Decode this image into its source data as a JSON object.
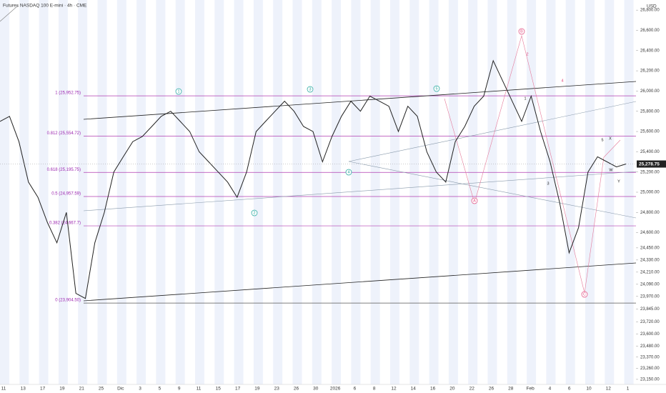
{
  "chart_data": {
    "type": "line",
    "title": "Futures NASDAQ 100 E-mini · 4h · CME",
    "currency": "USD",
    "color": "#222222",
    "values": [
      25700,
      25750,
      25500,
      25100,
      24950,
      24700,
      24500,
      24800,
      24000,
      23950,
      24500,
      24800,
      25200,
      25350,
      25500,
      25550,
      25650,
      25750,
      25800,
      25700,
      25600,
      25400,
      25300,
      25200,
      25100,
      24950,
      25200,
      25600,
      25700,
      25800,
      25900,
      25800,
      25650,
      25600,
      25300,
      25550,
      25750,
      25900,
      25800,
      25950,
      25900,
      25850,
      25600,
      25850,
      25750,
      25400,
      25200,
      25100,
      25500,
      25650,
      25850,
      25950,
      26300,
      26100,
      25900,
      25700,
      25950,
      25600,
      25300,
      24900,
      24400,
      24650,
      25200,
      25350,
      25300,
      25250,
      25278.75
    ],
    "last_price": {
      "value": 25278.75,
      "label": "25,278.75"
    },
    "ylim": [
      23100,
      26900
    ],
    "yticks": [
      {
        "value": 26800,
        "label": "26,800.00"
      },
      {
        "value": 26600,
        "label": "26,600.00"
      },
      {
        "value": 26400,
        "label": "26,400.00"
      },
      {
        "value": 26200,
        "label": "26,200.00"
      },
      {
        "value": 26000,
        "label": "26,000.00"
      },
      {
        "value": 25800,
        "label": "25,800.00"
      },
      {
        "value": 25600,
        "label": "25,600.00"
      },
      {
        "value": 25400,
        "label": "25,400.00"
      },
      {
        "value": 25200,
        "label": "25,200.00"
      },
      {
        "value": 25000,
        "label": "25,000.00"
      },
      {
        "value": 24800,
        "label": "24,800.00"
      },
      {
        "value": 24600,
        "label": "24,600.00"
      },
      {
        "value": 24450,
        "label": "24,450.00"
      },
      {
        "value": 24330,
        "label": "24,330.00"
      },
      {
        "value": 24210,
        "label": "24,210.00"
      },
      {
        "value": 24090,
        "label": "24,090.00"
      },
      {
        "value": 23970,
        "label": "23,970.00"
      },
      {
        "value": 23845,
        "label": "23,845.00"
      },
      {
        "value": 23720,
        "label": "23,720.00"
      },
      {
        "value": 23600,
        "label": "23,600.00"
      },
      {
        "value": 23480,
        "label": "23,480.00"
      },
      {
        "value": 23370,
        "label": "23,370.00"
      },
      {
        "value": 23260,
        "label": "23,260.00"
      },
      {
        "value": 23150,
        "label": "23,150.00"
      }
    ],
    "x_labels": [
      "11",
      "13",
      "17",
      "19",
      "21",
      "25",
      "Dic",
      "3",
      "5",
      "9",
      "11",
      "15",
      "17",
      "19",
      "23",
      "26",
      "30",
      "2026",
      "6",
      "8",
      "12",
      "14",
      "16",
      "20",
      "22",
      "26",
      "28",
      "Feb",
      "4",
      "6",
      "10",
      "12",
      "1"
    ],
    "fib_levels": [
      {
        "value": 25952.75,
        "label": "1 (25,952.75)"
      },
      {
        "value": 25554.72,
        "label": "0.812 (25,554.72)"
      },
      {
        "value": 25195.75,
        "label": "0.618 (25,195.75)"
      },
      {
        "value": 24957.59,
        "label": "0.5 (24,957.59)"
      },
      {
        "value": 24667.7,
        "label": "0.382 (24,667.7)"
      },
      {
        "value": 23904.5,
        "label": "0 (23,904.50)"
      }
    ],
    "annotations": [
      "1",
      "3",
      "5",
      "4",
      "2",
      "B",
      "A",
      "C",
      "2",
      "4",
      "5",
      "X",
      "W",
      "Y",
      "3",
      "1"
    ]
  }
}
